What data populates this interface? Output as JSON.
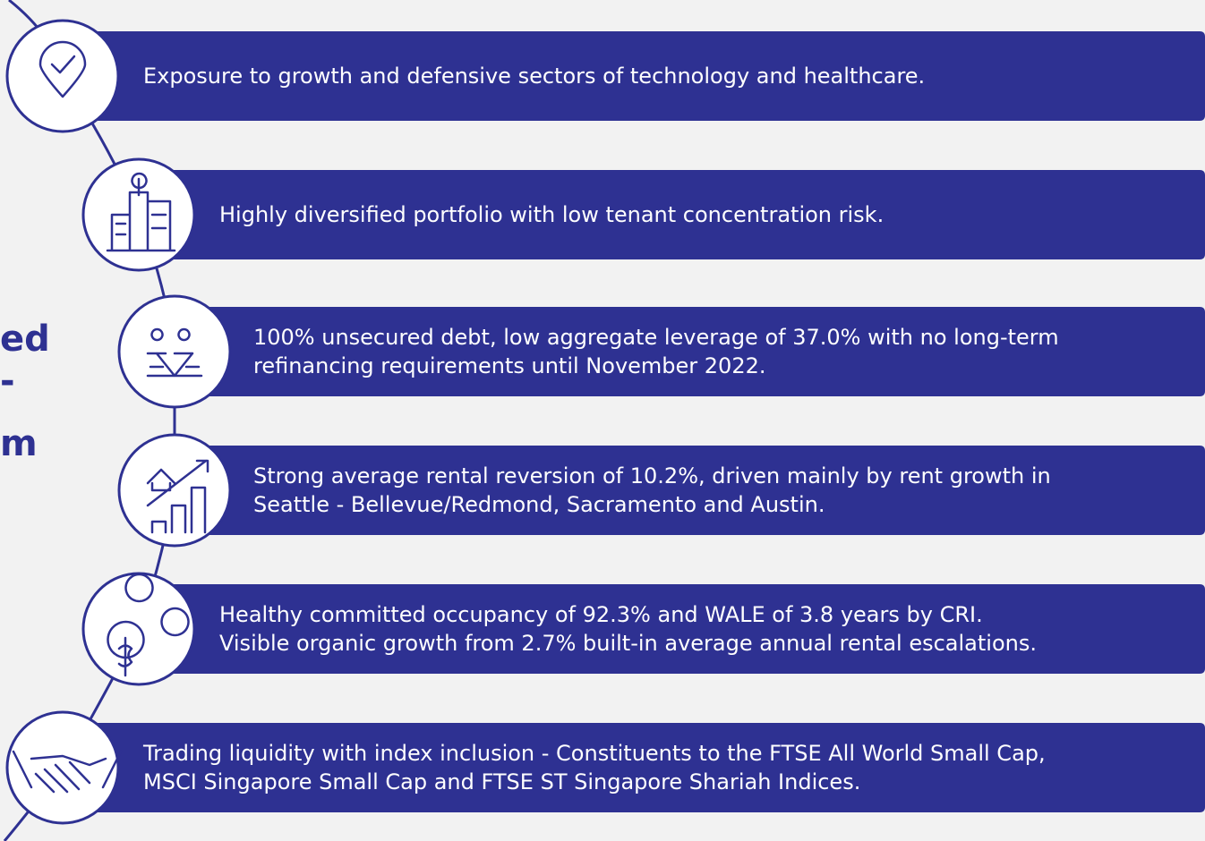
{
  "left_fragments": [
    "ed",
    "-",
    "m"
  ],
  "items": [
    {
      "lines": [
        "Exposure to growth and defensive sectors of technology and healthcare."
      ]
    },
    {
      "lines": [
        "Highly diversified portfolio with low tenant concentration risk."
      ]
    },
    {
      "lines": [
        "100% unsecured debt, low aggregate leverage of 37.0% with no long-term",
        "refinancing requirements until November 2022."
      ]
    },
    {
      "lines": [
        "Strong average rental reversion of 10.2%, driven mainly by rent growth in",
        "Seattle - Bellevue/Redmond, Sacramento and Austin."
      ]
    },
    {
      "lines": [
        "Healthy committed occupancy of 92.3% and WALE of 3.8 years by CRI.",
        "Visible organic growth from 2.7% built-in average annual rental escalations."
      ]
    },
    {
      "lines": [
        "Trading liquidity with index inclusion - Constituents to the FTSE All World Small Cap,",
        "MSCI Singapore Small Cap and FTSE ST Singapore Shariah Indices."
      ]
    }
  ]
}
